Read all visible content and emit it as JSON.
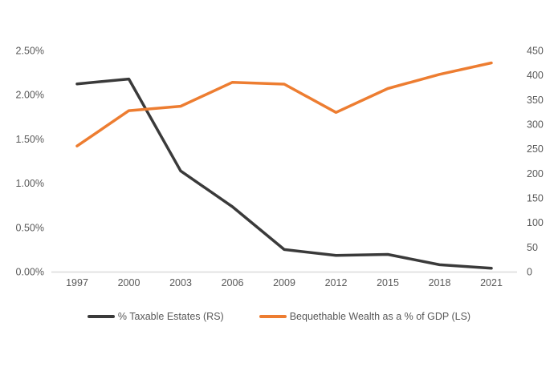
{
  "chart_data": {
    "type": "line",
    "title": "",
    "categories": [
      "1997",
      "2000",
      "2003",
      "2006",
      "2009",
      "2012",
      "2015",
      "2018",
      "2021"
    ],
    "series": [
      {
        "name": "% Taxable Estates (RS)",
        "axis": "right",
        "color": "#3a3a3a",
        "values": [
          382,
          392,
          205,
          132,
          45,
          33,
          35,
          14,
          7
        ]
      },
      {
        "name": "Bequethable Wealth as a % of GDP (LS)",
        "axis": "left",
        "color": "#ED7D31",
        "values": [
          1.42,
          1.82,
          1.87,
          2.14,
          2.12,
          1.8,
          2.07,
          2.23,
          2.36
        ]
      }
    ],
    "left_axis": {
      "min": 0,
      "max": 2.5,
      "tick_labels": [
        "0.00%",
        "0.50%",
        "1.00%",
        "1.50%",
        "2.00%",
        "2.50%"
      ]
    },
    "right_axis": {
      "min": 0,
      "max": 450,
      "tick_labels": [
        "0",
        "50",
        "100",
        "150",
        "200",
        "250",
        "300",
        "350",
        "400",
        "450"
      ]
    },
    "grid": false,
    "legend_position": "bottom"
  },
  "style": {
    "axis_label_color": "#595959",
    "axis_line_color": "#d9d9d9",
    "background": "#ffffff"
  }
}
